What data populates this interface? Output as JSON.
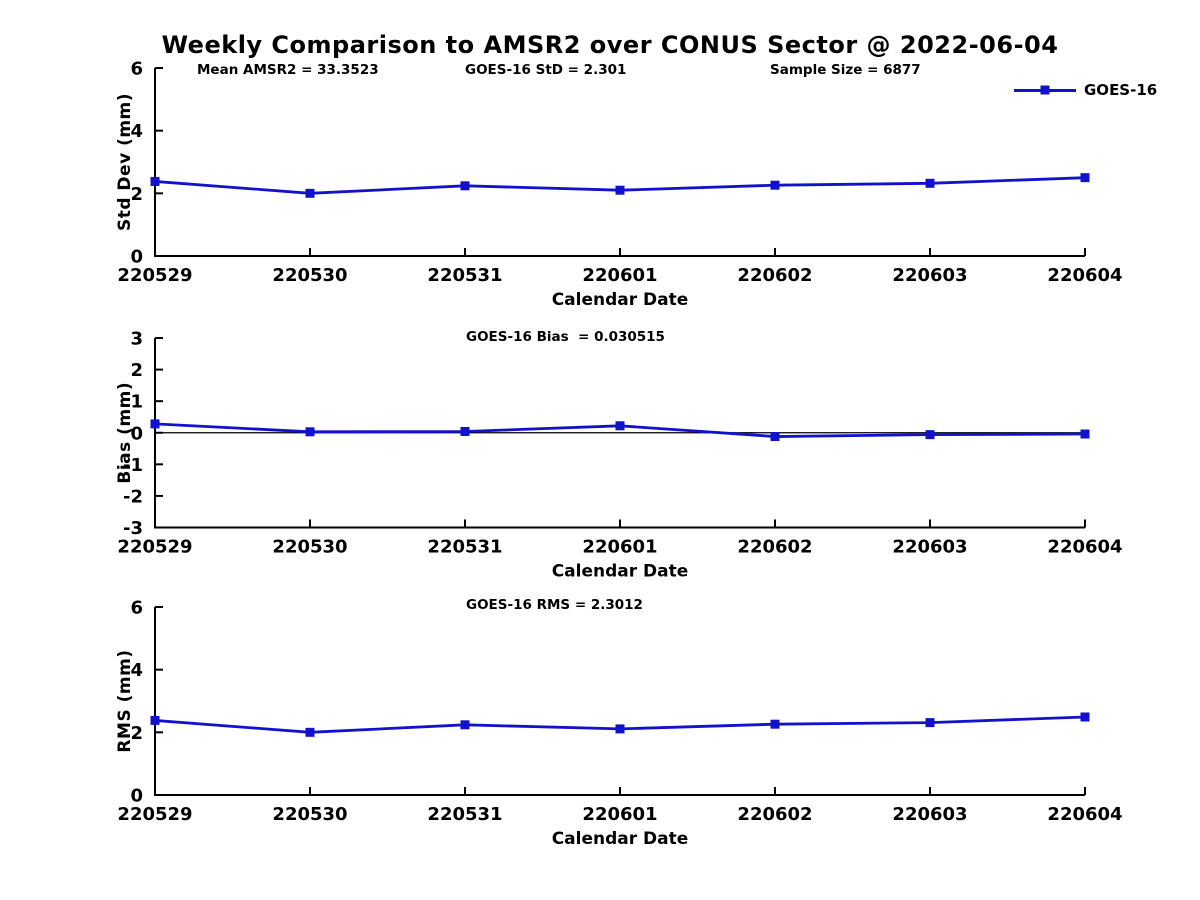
{
  "figure": {
    "title": "Weekly Comparison to AMSR2 over CONUS Sector @ 2022-06-04",
    "background": "#ffffff"
  },
  "colors": {
    "series_blue": "#1212cc",
    "axis_black": "#000000",
    "text_black": "#000000"
  },
  "legend": {
    "label": "GOES-16",
    "position": "top-right",
    "marker": "square"
  },
  "chart_data": [
    {
      "type": "line",
      "panel": "std_dev",
      "ylabel": "Std Dev (mm)",
      "xlabel": "Calendar Date",
      "ylim": [
        0,
        6
      ],
      "yticks": [
        0,
        2,
        4,
        6
      ],
      "grid": false,
      "categories": [
        "220529",
        "220530",
        "220531",
        "220601",
        "220602",
        "220603",
        "220604"
      ],
      "series": [
        {
          "name": "GOES-16",
          "color": "#1212cc",
          "marker": "square",
          "values": [
            2.38,
            2.0,
            2.24,
            2.1,
            2.26,
            2.32,
            2.5
          ]
        }
      ],
      "annotations": [
        "Mean AMSR2 = 33.3523",
        "GOES-16 StD = 2.301",
        "Sample Size = 6877"
      ]
    },
    {
      "type": "line",
      "panel": "bias",
      "ylabel": "Bias (mm)",
      "xlabel": "Calendar Date",
      "ylim": [
        -3,
        3
      ],
      "yticks": [
        -3,
        -2,
        -1,
        0,
        1,
        2,
        3
      ],
      "zero_line": true,
      "grid": false,
      "categories": [
        "220529",
        "220530",
        "220531",
        "220601",
        "220602",
        "220603",
        "220604"
      ],
      "series": [
        {
          "name": "GOES-16",
          "color": "#1212cc",
          "marker": "square",
          "values": [
            0.28,
            0.03,
            0.04,
            0.22,
            -0.12,
            -0.06,
            -0.04
          ]
        }
      ],
      "annotations": [
        "GOES-16 Bias  = 0.030515"
      ]
    },
    {
      "type": "line",
      "panel": "rms",
      "ylabel": "RMS (mm)",
      "xlabel": "Calendar Date",
      "ylim": [
        0,
        6
      ],
      "yticks": [
        0,
        2,
        4,
        6
      ],
      "grid": false,
      "categories": [
        "220529",
        "220530",
        "220531",
        "220601",
        "220602",
        "220603",
        "220604"
      ],
      "series": [
        {
          "name": "GOES-16",
          "color": "#1212cc",
          "marker": "square",
          "values": [
            2.38,
            2.0,
            2.24,
            2.11,
            2.26,
            2.31,
            2.49
          ]
        }
      ],
      "annotations": [
        "GOES-16 RMS = 2.3012"
      ]
    }
  ]
}
